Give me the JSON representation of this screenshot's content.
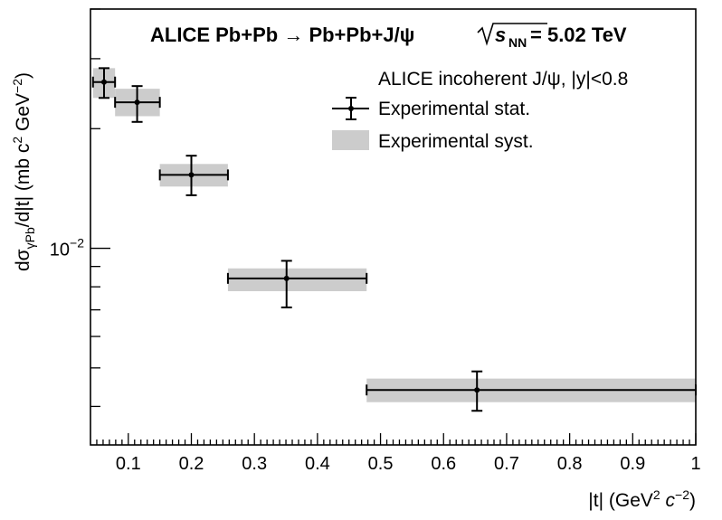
{
  "chart_data": {
    "type": "scatter",
    "title": {
      "prefix": "ALICE Pb+Pb",
      "arrow": "→",
      "process": "Pb+Pb+J/ψ",
      "energy_symbol": "s",
      "energy_sub": "NN",
      "energy_value": "= 5.02 TeV"
    },
    "xlabel": {
      "main": "|t| (GeV",
      "sup": "2",
      "mid": " c",
      "sup2": "−2",
      "end": ")"
    },
    "ylabel": {
      "main": "dσ",
      "sub": "γPb",
      "mid": "/d|t| (mb c",
      "sup1": "2",
      "mid2": " GeV",
      "sup2": "−2",
      "end": ")"
    },
    "xlim": [
      0.04,
      1.0
    ],
    "ylim": [
      0.0032,
      0.04
    ],
    "y_log_scale": true,
    "x_ticks": [
      "0.1",
      "0.2",
      "0.3",
      "0.4",
      "0.5",
      "0.6",
      "0.7",
      "0.8",
      "0.9",
      "1"
    ],
    "y_tick_label": {
      "base": "10",
      "exp": "−2"
    },
    "legend": {
      "header": "ALICE incoherent J/ψ, |y|<0.8",
      "entries": [
        "Experimental stat.",
        "Experimental syst."
      ],
      "placement": "top-right"
    },
    "series": [
      {
        "name": "Experimental stat.",
        "points": [
          {
            "x": 0.0615,
            "xlo": 0.044,
            "xhi": 0.079,
            "y": 0.0262,
            "ylo": 0.0239,
            "yhi": 0.0284,
            "syst_lo": 0.0239,
            "syst_hi": 0.0284
          },
          {
            "x": 0.114,
            "xlo": 0.079,
            "xhi": 0.15,
            "y": 0.0233,
            "ylo": 0.0208,
            "yhi": 0.0256,
            "syst_lo": 0.0215,
            "syst_hi": 0.0252
          },
          {
            "x": 0.2,
            "xlo": 0.15,
            "xhi": 0.258,
            "y": 0.0153,
            "ylo": 0.0136,
            "yhi": 0.0171,
            "syst_lo": 0.0143,
            "syst_hi": 0.0163
          },
          {
            "x": 0.351,
            "xlo": 0.258,
            "xhi": 0.478,
            "y": 0.0084,
            "ylo": 0.0071,
            "yhi": 0.0093,
            "syst_lo": 0.0078,
            "syst_hi": 0.0089
          },
          {
            "x": 0.653,
            "xlo": 0.478,
            "xhi": 1.0,
            "y": 0.0044,
            "ylo": 0.0039,
            "yhi": 0.0049,
            "syst_lo": 0.0041,
            "syst_hi": 0.0047
          }
        ]
      }
    ]
  }
}
